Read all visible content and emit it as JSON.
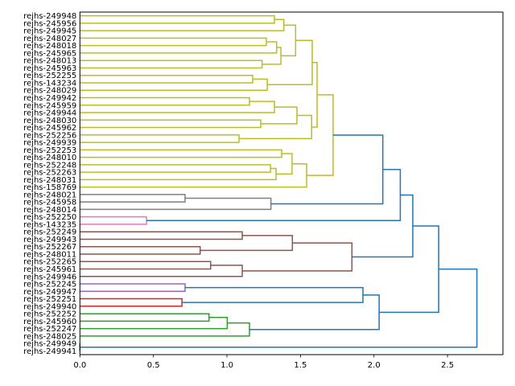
{
  "chart_data": {
    "type": "dendrogram",
    "orientation": "horizontal",
    "title": "",
    "xlabel": "",
    "ylabel": "",
    "xlim": [
      0,
      2.877
    ],
    "xticks": [
      0.0,
      0.5,
      1.0,
      1.5,
      2.0,
      2.5
    ],
    "xtick_labels": [
      "0.0",
      "0.5",
      "1.0",
      "1.5",
      "2.0",
      "2.5"
    ],
    "grid": false,
    "colors": {
      "yellow": "#bcbd22",
      "gray": "#7f7f7f",
      "pink": "#e377c2",
      "brown": "#8c564b",
      "purple": "#9467bd",
      "red": "#d62728",
      "green": "#2ca02c",
      "blue": "#1f77b4"
    },
    "leaves": [
      "rejhs-249948",
      "rejhs-245956",
      "rejhs-249945",
      "rejhs-248027",
      "rejhs-248018",
      "rejhs-245965",
      "rejhs-248013",
      "rejhs-245963",
      "rejhs-252255",
      "rejhs-143234",
      "rejhs-248029",
      "rejhs-249942",
      "rejhs-245959",
      "rejhs-249944",
      "rejhs-248030",
      "rejhs-245962",
      "rejhs-252256",
      "rejhs-249939",
      "rejhs-252253",
      "rejhs-248010",
      "rejhs-252248",
      "rejhs-252263",
      "rejhs-248031",
      "rejhs-158769",
      "rejhs-248021",
      "rejhs-245958",
      "rejhs-248014",
      "rejhs-252250",
      "rejhs-143235",
      "rejhs-252249",
      "rejhs-249943",
      "rejhs-252267",
      "rejhs-248011",
      "rejhs-252265",
      "rejhs-245961",
      "rejhs-249946",
      "rejhs-252245",
      "rejhs-249947",
      "rejhs-252251",
      "rejhs-249940",
      "rejhs-252252",
      "rejhs-245960",
      "rejhs-252247",
      "rejhs-248025",
      "rejhs-249949",
      "rejhs-249941"
    ],
    "merges_note": "each merge: [left_id, right_id, height, color]; ids < 46 are leaves, id 46+k is merge k",
    "merges": [
      [
        0,
        1,
        1.323,
        "yellow"
      ],
      [
        46,
        2,
        1.387,
        "yellow"
      ],
      [
        3,
        4,
        1.268,
        "yellow"
      ],
      [
        48,
        5,
        1.338,
        "yellow"
      ],
      [
        6,
        7,
        1.239,
        "yellow"
      ],
      [
        49,
        50,
        1.367,
        "yellow"
      ],
      [
        47,
        51,
        1.467,
        "yellow"
      ],
      [
        8,
        9,
        1.175,
        "yellow"
      ],
      [
        53,
        10,
        1.274,
        "yellow"
      ],
      [
        52,
        54,
        1.58,
        "yellow"
      ],
      [
        11,
        12,
        1.153,
        "yellow"
      ],
      [
        56,
        13,
        1.323,
        "yellow"
      ],
      [
        14,
        15,
        1.23,
        "yellow"
      ],
      [
        57,
        58,
        1.476,
        "yellow"
      ],
      [
        16,
        17,
        1.082,
        "yellow"
      ],
      [
        59,
        60,
        1.576,
        "yellow"
      ],
      [
        55,
        61,
        1.613,
        "yellow"
      ],
      [
        18,
        19,
        1.372,
        "yellow"
      ],
      [
        20,
        21,
        1.296,
        "yellow"
      ],
      [
        64,
        22,
        1.334,
        "yellow"
      ],
      [
        63,
        65,
        1.443,
        "yellow"
      ],
      [
        66,
        23,
        1.542,
        "yellow"
      ],
      [
        62,
        67,
        1.722,
        "yellow"
      ],
      [
        24,
        25,
        0.715,
        "gray"
      ],
      [
        69,
        26,
        1.299,
        "gray"
      ],
      [
        68,
        70,
        2.06,
        "blue"
      ],
      [
        27,
        28,
        0.453,
        "pink"
      ],
      [
        71,
        72,
        2.179,
        "blue"
      ],
      [
        29,
        30,
        1.104,
        "brown"
      ],
      [
        31,
        32,
        0.818,
        "brown"
      ],
      [
        74,
        75,
        1.445,
        "brown"
      ],
      [
        33,
        34,
        0.889,
        "brown"
      ],
      [
        77,
        35,
        1.104,
        "brown"
      ],
      [
        76,
        78,
        1.85,
        "brown"
      ],
      [
        73,
        79,
        2.264,
        "blue"
      ],
      [
        36,
        37,
        0.715,
        "purple"
      ],
      [
        38,
        39,
        0.694,
        "red"
      ],
      [
        81,
        82,
        1.925,
        "blue"
      ],
      [
        40,
        41,
        0.878,
        "green"
      ],
      [
        84,
        42,
        1.002,
        "green"
      ],
      [
        85,
        43,
        1.153,
        "green"
      ],
      [
        83,
        86,
        2.035,
        "blue"
      ],
      [
        80,
        87,
        2.44,
        "blue"
      ],
      [
        44,
        45,
        0.0,
        "blue"
      ],
      [
        88,
        89,
        2.7,
        "blue"
      ]
    ]
  }
}
